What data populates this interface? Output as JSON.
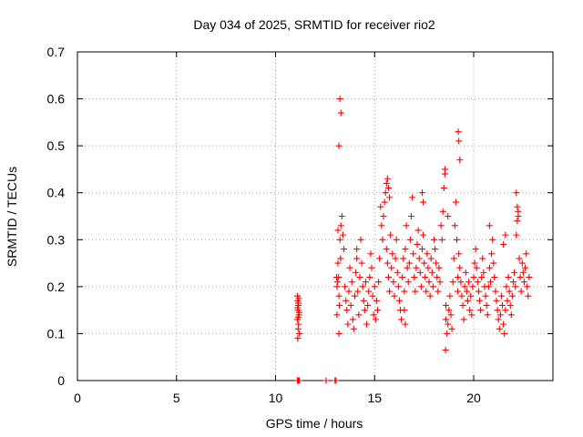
{
  "chart_data": {
    "type": "scatter",
    "title": "Day 034 of 2025, SRMTID for receiver rio2",
    "xlabel": "GPS time / hours",
    "ylabel": "SRMTID / TECUs",
    "xlim": [
      0,
      24
    ],
    "ylim": [
      0,
      0.7
    ],
    "xticks": [
      0,
      5,
      10,
      15,
      20
    ],
    "xtick_labels": [
      "0",
      "5",
      "10",
      "15",
      "20"
    ],
    "yticks": [
      0,
      0.1,
      0.2,
      0.3,
      0.4,
      0.5,
      0.6,
      0.7
    ],
    "ytick_labels": [
      "0",
      "0.1",
      "0.2",
      "0.3",
      "0.4",
      "0.5",
      "0.6",
      "0.7"
    ],
    "grid": true,
    "marker": "+",
    "series": [
      {
        "name": "SRMTID",
        "color": "#ff0000",
        "x": [
          11.1,
          11.12,
          11.15,
          11.13,
          11.18,
          11.1,
          11.16,
          11.14,
          11.2,
          11.12,
          11.17,
          11.15,
          11.11,
          11.19,
          11.14,
          11.1,
          11.15,
          11.2,
          12.55,
          13.0,
          13.05,
          13.1,
          13.15,
          13.15,
          13.18,
          13.2,
          13.22,
          13.25,
          13.1,
          13.2,
          13.08,
          13.3,
          13.28,
          13.12,
          13.35,
          13.4,
          13.45,
          13.5,
          13.55,
          13.6,
          13.65,
          13.7,
          13.75,
          13.8,
          13.85,
          13.9,
          13.95,
          14.0,
          14.05,
          14.1,
          14.15,
          14.2,
          14.25,
          14.3,
          14.35,
          14.4,
          14.45,
          14.5,
          14.55,
          14.6,
          14.65,
          14.7,
          14.75,
          14.8,
          14.85,
          14.9,
          14.95,
          15.0,
          15.05,
          15.1,
          15.15,
          15.2,
          15.25,
          15.3,
          15.35,
          15.4,
          15.45,
          15.5,
          15.55,
          15.6,
          15.6,
          15.65,
          15.7,
          15.75,
          15.8,
          15.85,
          15.9,
          15.95,
          16.0,
          16.05,
          16.1,
          16.15,
          16.2,
          16.25,
          16.3,
          16.35,
          16.4,
          16.45,
          16.5,
          16.55,
          16.6,
          16.65,
          16.7,
          16.75,
          16.8,
          16.85,
          16.9,
          16.95,
          17.0,
          17.05,
          17.1,
          17.15,
          17.2,
          17.25,
          17.3,
          17.35,
          17.4,
          17.45,
          17.5,
          17.55,
          17.6,
          17.65,
          17.7,
          17.75,
          17.8,
          17.85,
          17.9,
          17.95,
          18.0,
          18.05,
          18.1,
          18.15,
          18.2,
          18.25,
          18.3,
          18.35,
          18.4,
          18.45,
          18.5,
          18.55,
          18.6,
          18.6,
          18.65,
          18.7,
          18.75,
          18.8,
          18.85,
          18.9,
          18.95,
          19.0,
          19.05,
          19.1,
          19.15,
          19.2,
          19.2,
          19.25,
          19.3,
          19.35,
          19.4,
          19.45,
          19.5,
          19.55,
          19.6,
          19.65,
          19.7,
          19.75,
          19.8,
          19.85,
          19.9,
          19.95,
          20.0,
          20.05,
          20.1,
          20.15,
          20.2,
          20.25,
          20.3,
          20.35,
          20.4,
          20.45,
          20.5,
          20.55,
          20.6,
          20.65,
          20.7,
          20.75,
          20.8,
          20.85,
          20.9,
          20.95,
          21.0,
          21.05,
          21.1,
          21.15,
          21.2,
          21.25,
          21.3,
          21.35,
          21.4,
          21.45,
          21.5,
          21.55,
          21.6,
          21.65,
          21.7,
          21.75,
          21.8,
          21.85,
          21.9,
          21.95,
          22.0,
          22.05,
          22.1,
          22.15,
          22.2,
          22.25,
          22.3,
          22.35,
          22.4,
          22.45,
          22.5,
          22.55,
          22.6,
          22.65,
          22.7,
          22.75,
          22.8,
          13.25,
          13.3,
          13.2,
          15.65,
          15.7,
          15.75,
          17.4,
          17.45,
          18.55,
          18.58,
          19.22,
          19.25,
          19.3,
          22.15,
          22.2,
          22.25,
          14.1,
          16.5,
          16.55,
          18.6,
          18.7,
          20.8,
          21.5,
          21.6
        ],
        "y": [
          0.18,
          0.17,
          0.16,
          0.15,
          0.14,
          0.13,
          0.12,
          0.11,
          0.1,
          0.09,
          0.175,
          0.165,
          0.155,
          0.145,
          0.135,
          0.0,
          0.0,
          0.0,
          0.0,
          0.0,
          0.0,
          0.2,
          0.25,
          0.32,
          0.22,
          0.18,
          0.16,
          0.3,
          0.14,
          0.1,
          0.22,
          0.33,
          0.26,
          0.21,
          0.35,
          0.31,
          0.28,
          0.2,
          0.17,
          0.15,
          0.12,
          0.19,
          0.24,
          0.16,
          0.21,
          0.13,
          0.11,
          0.18,
          0.23,
          0.26,
          0.19,
          0.14,
          0.22,
          0.3,
          0.25,
          0.2,
          0.17,
          0.15,
          0.21,
          0.12,
          0.16,
          0.19,
          0.22,
          0.27,
          0.24,
          0.18,
          0.14,
          0.2,
          0.13,
          0.17,
          0.15,
          0.21,
          0.26,
          0.37,
          0.33,
          0.3,
          0.35,
          0.38,
          0.4,
          0.42,
          0.28,
          0.25,
          0.22,
          0.19,
          0.31,
          0.24,
          0.27,
          0.21,
          0.18,
          0.26,
          0.3,
          0.23,
          0.2,
          0.17,
          0.15,
          0.13,
          0.22,
          0.26,
          0.19,
          0.28,
          0.33,
          0.24,
          0.21,
          0.25,
          0.3,
          0.35,
          0.39,
          0.27,
          0.22,
          0.19,
          0.24,
          0.29,
          0.32,
          0.26,
          0.23,
          0.2,
          0.28,
          0.31,
          0.25,
          0.22,
          0.19,
          0.27,
          0.24,
          0.21,
          0.18,
          0.26,
          0.23,
          0.2,
          0.3,
          0.28,
          0.25,
          0.22,
          0.19,
          0.24,
          0.21,
          0.33,
          0.3,
          0.36,
          0.41,
          0.44,
          0.16,
          0.13,
          0.1,
          0.12,
          0.15,
          0.18,
          0.14,
          0.11,
          0.21,
          0.26,
          0.33,
          0.38,
          0.3,
          0.22,
          0.19,
          0.27,
          0.24,
          0.21,
          0.18,
          0.16,
          0.13,
          0.2,
          0.23,
          0.19,
          0.17,
          0.21,
          0.15,
          0.18,
          0.14,
          0.2,
          0.22,
          0.25,
          0.28,
          0.24,
          0.21,
          0.19,
          0.17,
          0.15,
          0.22,
          0.26,
          0.23,
          0.2,
          0.18,
          0.16,
          0.14,
          0.2,
          0.24,
          0.21,
          0.27,
          0.3,
          0.25,
          0.22,
          0.19,
          0.17,
          0.15,
          0.13,
          0.11,
          0.14,
          0.18,
          0.16,
          0.12,
          0.1,
          0.15,
          0.2,
          0.17,
          0.22,
          0.19,
          0.16,
          0.14,
          0.18,
          0.21,
          0.23,
          0.2,
          0.31,
          0.34,
          0.36,
          0.26,
          0.22,
          0.19,
          0.25,
          0.23,
          0.21,
          0.24,
          0.27,
          0.2,
          0.18,
          0.22,
          0.6,
          0.57,
          0.5,
          0.43,
          0.41,
          0.39,
          0.4,
          0.38,
          0.45,
          0.065,
          0.53,
          0.51,
          0.47,
          0.4,
          0.37,
          0.35,
          0.28,
          0.15,
          0.12,
          0.13,
          0.35,
          0.33,
          0.29,
          0.31
        ]
      }
    ]
  }
}
